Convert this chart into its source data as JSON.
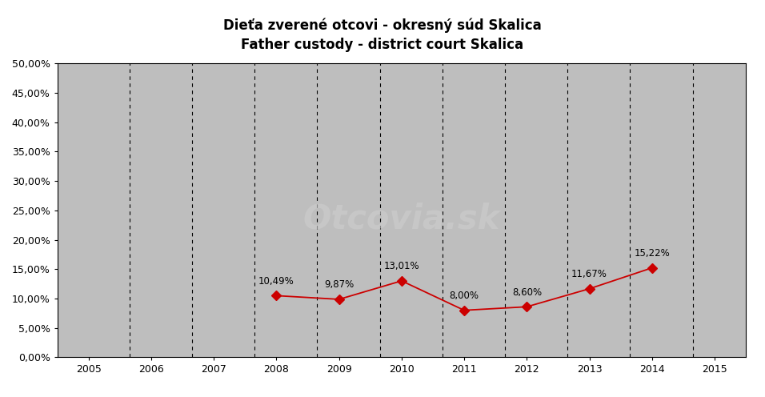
{
  "title_line1": "Dieťa zverené otcovi - okresný súd Skalica",
  "title_line2": "Father custody - district court Skalica",
  "x_years": [
    2005,
    2006,
    2007,
    2008,
    2009,
    2010,
    2011,
    2012,
    2013,
    2014,
    2015
  ],
  "data_years": [
    2008,
    2009,
    2010,
    2011,
    2012,
    2013,
    2014
  ],
  "data_values": [
    0.1049,
    0.0987,
    0.1301,
    0.08,
    0.086,
    0.1167,
    0.1522
  ],
  "data_labels": [
    "10,49%",
    "9,87%",
    "13,01%",
    "8,00%",
    "8,60%",
    "11,67%",
    "15,22%"
  ],
  "label_offsets_x": [
    0,
    0,
    0,
    0,
    0,
    0,
    0
  ],
  "label_offsets_y": [
    0.016,
    0.016,
    0.016,
    0.016,
    0.016,
    0.016,
    0.016
  ],
  "xlim": [
    2004.5,
    2015.5
  ],
  "ylim": [
    0.0,
    0.5
  ],
  "yticks": [
    0.0,
    0.05,
    0.1,
    0.15,
    0.2,
    0.25,
    0.3,
    0.35,
    0.4,
    0.45,
    0.5
  ],
  "ytick_labels": [
    "0,00%",
    "5,00%",
    "10,00%",
    "15,00%",
    "20,00%",
    "25,00%",
    "30,00%",
    "35,00%",
    "40,00%",
    "45,00%",
    "50,00%"
  ],
  "line_color": "#cc0000",
  "marker_color": "#cc0000",
  "marker_style": "D",
  "marker_size": 6,
  "plot_bg_color": "#bebebe",
  "fig_bg_color": "#ffffff",
  "grid_color": "#000000",
  "watermark_text": "Otcovia.sk",
  "watermark_color": "#cccccc",
  "watermark_fontsize": 30,
  "title_fontsize": 12,
  "tick_fontsize": 9,
  "label_fontsize": 8.5,
  "dashed_x": [
    2005.65,
    2006.65,
    2007.65,
    2008.65,
    2009.65,
    2010.65,
    2011.65,
    2012.65,
    2013.65,
    2014.65
  ]
}
